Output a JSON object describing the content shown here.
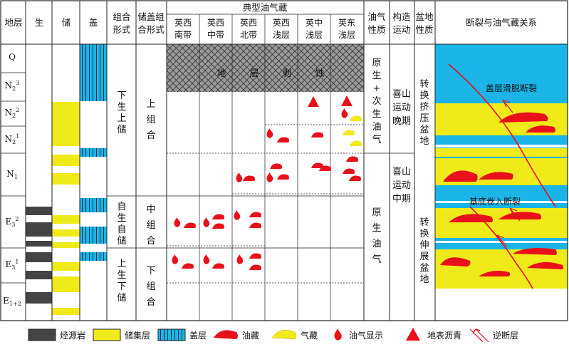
{
  "header": {
    "stratum": "地层",
    "source": "生",
    "reservoir": "储",
    "seal": "盖",
    "combo_form": [
      "组合",
      "形式"
    ],
    "combo_type": [
      "储盖组",
      "合形式"
    ],
    "typical_title": "典型油气藏",
    "sub_columns": [
      [
        "英西",
        "南带"
      ],
      [
        "英西",
        "中带"
      ],
      [
        "英西",
        "北带"
      ],
      [
        "英西",
        "浅层"
      ],
      [
        "英中",
        "浅层"
      ],
      [
        "英东",
        "浅层"
      ]
    ],
    "hc_nature": [
      "油气",
      "性质"
    ],
    "tectonic": [
      "构造",
      "运动"
    ],
    "basin_nature": [
      "盆地",
      "性质"
    ],
    "fault_relation": "断裂与油气藏关系"
  },
  "strata": [
    {
      "base": "Q",
      "sup": "",
      "sub": ""
    },
    {
      "base": "N",
      "sup": "3",
      "sub": "2"
    },
    {
      "base": "N",
      "sup": "2",
      "sub": "2"
    },
    {
      "base": "N",
      "sup": "1",
      "sub": "2"
    },
    {
      "base": "N",
      "sup": "",
      "sub": "1"
    },
    {
      "base": "E",
      "sup": "2",
      "sub": "3"
    },
    {
      "base": "E",
      "sup": "1",
      "sub": "3"
    },
    {
      "base": "E",
      "sup": "",
      "sub": "1+2"
    }
  ],
  "combo_forms": [
    [
      "下",
      "生",
      "上",
      "储"
    ],
    [
      "自",
      "生",
      "自",
      "储"
    ],
    [
      "上",
      "生",
      "下",
      "储"
    ]
  ],
  "combo_types": [
    [
      "上",
      "组",
      "合"
    ],
    [
      "中",
      "组",
      "合"
    ],
    [
      "下",
      "组",
      "合"
    ]
  ],
  "erosion_text": [
    "地",
    "层",
    "剥",
    "蚀"
  ],
  "hc_natures": [
    [
      "原",
      "生",
      "+",
      "次",
      "生",
      "油",
      "气"
    ],
    [
      "原",
      "生",
      "油",
      "气"
    ]
  ],
  "tectonics": [
    [
      "喜山",
      "运动",
      "晚期"
    ],
    [
      "喜山",
      "运动",
      "中期"
    ]
  ],
  "basins": [
    [
      "转",
      "换",
      "挤",
      "压",
      "盆",
      "地"
    ],
    [
      "转",
      "换",
      "伸",
      "展",
      "盆",
      "地"
    ]
  ],
  "fault_labels": [
    "盖层滑脱断裂",
    "基底卷入断裂"
  ],
  "legend": [
    {
      "icon": "source-rock",
      "label": "烃源岩"
    },
    {
      "icon": "reservoir-layer",
      "label": "储集层"
    },
    {
      "icon": "cap-layer",
      "label": "盖层"
    },
    {
      "icon": "oil-reservoir",
      "label": "油藏"
    },
    {
      "icon": "gas-reservoir",
      "label": "气藏"
    },
    {
      "icon": "oil-gas-show",
      "label": "油气显示"
    },
    {
      "icon": "surface-asphalt",
      "label": "地表沥青"
    },
    {
      "icon": "reverse-fault",
      "label": "逆断层"
    }
  ],
  "colors": {
    "oil": "#e8101a",
    "gas": "#f0ea1a",
    "source": "#444444",
    "cap": "#1ab4e6",
    "erosion": "#9a9a9a"
  }
}
